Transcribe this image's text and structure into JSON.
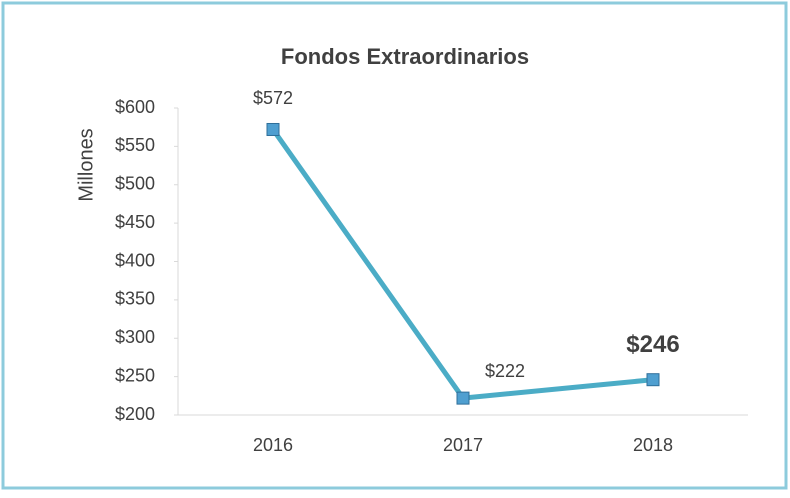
{
  "chart_data": {
    "type": "line",
    "title": "Fondos Extraordinarios",
    "y_label": "Millones",
    "categories": [
      "2016",
      "2017",
      "2018"
    ],
    "series": [
      {
        "name": "Fondos Extraordinarios",
        "color": "#4bacc6",
        "marker_color": "#4f9fd0",
        "values": [
          572,
          222,
          246
        ],
        "value_labels": [
          "$572",
          "$222",
          "$246"
        ],
        "bold_labels": [
          false,
          false,
          true
        ]
      }
    ],
    "ylim": [
      200,
      600
    ],
    "yticks": [
      {
        "value": 200,
        "label": "$200"
      },
      {
        "value": 250,
        "label": "$250"
      },
      {
        "value": 300,
        "label": "$300"
      },
      {
        "value": 350,
        "label": "$350"
      },
      {
        "value": 400,
        "label": "$400"
      },
      {
        "value": 450,
        "label": "$450"
      },
      {
        "value": 500,
        "label": "$500"
      },
      {
        "value": 550,
        "label": "$550"
      },
      {
        "value": 600,
        "label": "$600"
      }
    ]
  }
}
